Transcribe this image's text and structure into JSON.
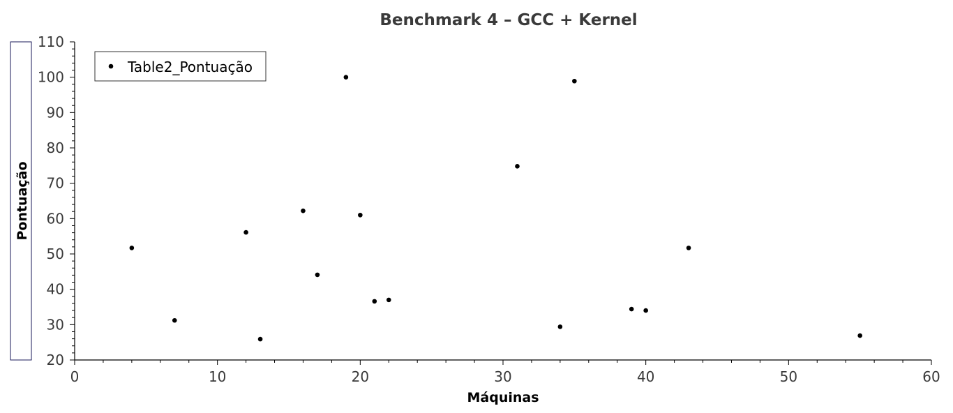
{
  "chart_data": {
    "type": "scatter",
    "title": "Benchmark 4 – GCC + Kernel",
    "xlabel": "Máquinas",
    "ylabel": "Pontuação",
    "xlim": [
      0,
      60
    ],
    "ylim": [
      20,
      110
    ],
    "x_ticks": [
      0,
      10,
      20,
      30,
      40,
      50,
      60
    ],
    "y_ticks": [
      20,
      30,
      40,
      50,
      60,
      70,
      80,
      90,
      100,
      110
    ],
    "grid": false,
    "legend_position": "top-left",
    "series": [
      {
        "name": "Table2_Pontuação",
        "color": "#000000",
        "points": [
          {
            "x": 4,
            "y": 51.7
          },
          {
            "x": 7,
            "y": 31.2
          },
          {
            "x": 12,
            "y": 56.1
          },
          {
            "x": 13,
            "y": 25.9
          },
          {
            "x": 16,
            "y": 62.2
          },
          {
            "x": 17,
            "y": 44.1
          },
          {
            "x": 19,
            "y": 100.0
          },
          {
            "x": 20,
            "y": 61.0
          },
          {
            "x": 21,
            "y": 36.6
          },
          {
            "x": 22,
            "y": 37.0
          },
          {
            "x": 31,
            "y": 74.8
          },
          {
            "x": 34,
            "y": 29.4
          },
          {
            "x": 35,
            "y": 98.9
          },
          {
            "x": 39,
            "y": 34.4
          },
          {
            "x": 40,
            "y": 34.0
          },
          {
            "x": 43,
            "y": 51.7
          },
          {
            "x": 55,
            "y": 26.9
          }
        ]
      }
    ]
  }
}
